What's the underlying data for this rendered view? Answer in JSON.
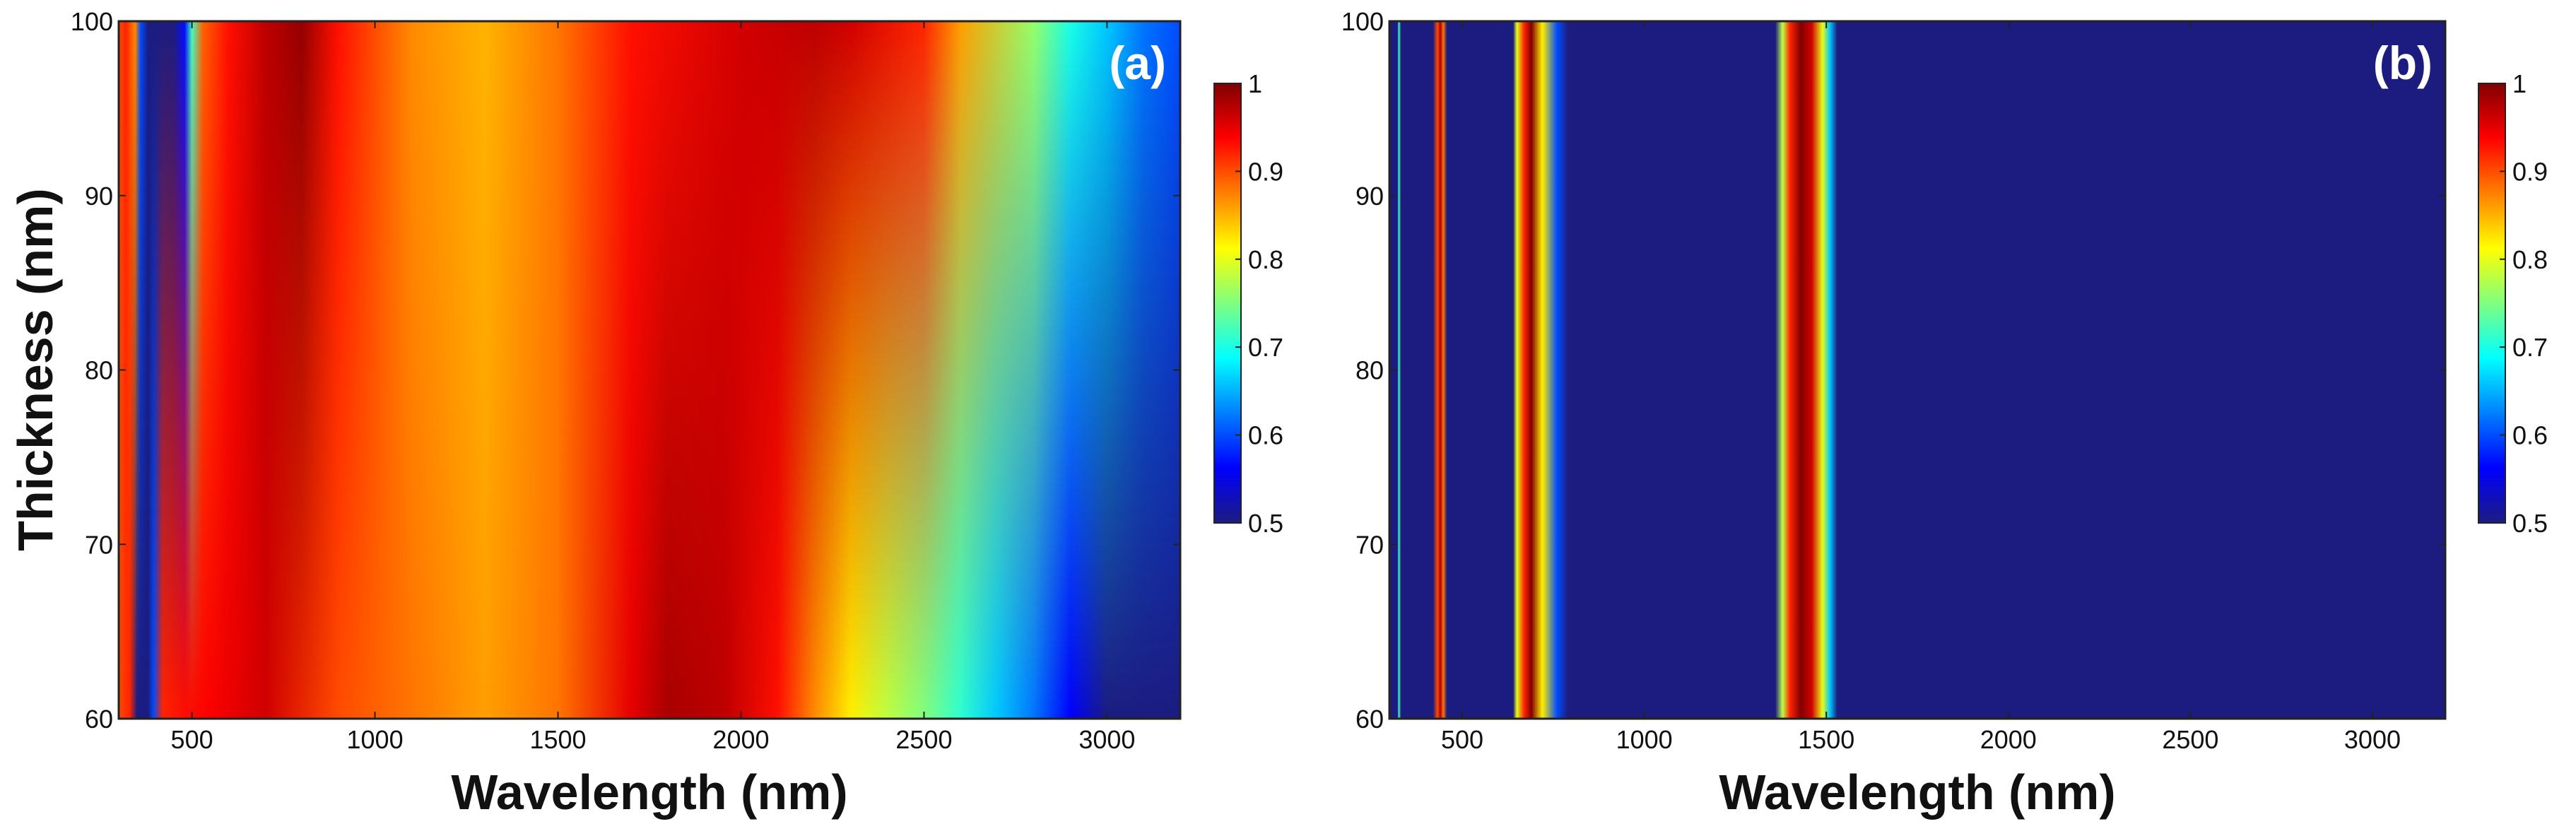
{
  "chart_data": [
    {
      "type": "heatmap",
      "panel_label": "(a)",
      "xlabel": "Wavelength (nm)",
      "ylabel": "Thickness (nm)",
      "xlim": [
        300,
        3200
      ],
      "ylim": [
        60,
        100
      ],
      "xticks": [
        500,
        1000,
        1500,
        2000,
        2500,
        3000
      ],
      "yticks": [
        60,
        70,
        80,
        90,
        100
      ],
      "colorbar": {
        "range": [
          0.5,
          1
        ],
        "ticks": [
          0.5,
          0.6,
          0.7,
          0.8,
          0.9,
          1
        ],
        "tick_labels": [
          "0.5",
          "0.6",
          "0.7",
          "0.8",
          "0.9",
          "1"
        ],
        "colormap": "jet"
      },
      "profile_at_thickness_60": {
        "wavelength": [
          300,
          330,
          350,
          380,
          395,
          420,
          480,
          550,
          700,
          900,
          1100,
          1300,
          1500,
          1700,
          1800,
          1950,
          2100,
          2200,
          2300,
          2400,
          2500,
          2600,
          2700,
          2800,
          2900,
          3000,
          3200
        ],
        "value": [
          0.9,
          0.92,
          0.5,
          0.5,
          0.6,
          0.92,
          0.93,
          0.94,
          0.96,
          0.9,
          0.88,
          0.86,
          0.88,
          0.95,
          0.98,
          0.97,
          0.93,
          0.87,
          0.82,
          0.78,
          0.75,
          0.71,
          0.66,
          0.62,
          0.56,
          0.5,
          0.5
        ]
      },
      "profile_at_thickness_100": {
        "wavelength": [
          300,
          320,
          345,
          360,
          380,
          450,
          480,
          500,
          530,
          600,
          700,
          800,
          900,
          1100,
          1300,
          1500,
          1700,
          2000,
          2200,
          2300,
          2500,
          2600,
          2800,
          2900,
          3000,
          3100,
          3200
        ],
        "value": [
          0.9,
          0.92,
          0.87,
          0.6,
          0.5,
          0.5,
          0.57,
          0.72,
          0.89,
          0.93,
          0.97,
          0.99,
          0.93,
          0.87,
          0.85,
          0.88,
          0.93,
          0.96,
          0.97,
          0.96,
          0.92,
          0.86,
          0.76,
          0.7,
          0.66,
          0.62,
          0.6
        ]
      }
    },
    {
      "type": "heatmap",
      "panel_label": "(b)",
      "xlabel": "Wavelength (nm)",
      "ylabel": "",
      "xlim": [
        300,
        3200
      ],
      "ylim": [
        60,
        100
      ],
      "xticks": [
        500,
        1000,
        1500,
        2000,
        2500,
        3000
      ],
      "yticks": [
        60,
        70,
        80,
        90,
        100
      ],
      "colorbar": {
        "range": [
          0.5,
          1
        ],
        "ticks": [
          0.5,
          0.6,
          0.7,
          0.8,
          0.9,
          1
        ],
        "tick_labels": [
          "0.5",
          "0.6",
          "0.7",
          "0.8",
          "0.9",
          "1"
        ],
        "colormap": "jet"
      },
      "profile_all_thickness": {
        "wavelength": [
          300,
          322,
          326,
          332,
          420,
          432,
          440,
          448,
          458,
          640,
          650,
          670,
          690,
          720,
          760,
          790,
          1360,
          1380,
          1400,
          1430,
          1460,
          1490,
          1510,
          1530,
          3200
        ],
        "value": [
          0.5,
          0.5,
          0.72,
          0.5,
          0.5,
          0.9,
          0.98,
          0.88,
          0.5,
          0.5,
          0.8,
          0.92,
          1.0,
          0.82,
          0.6,
          0.5,
          0.5,
          0.78,
          0.92,
          1.0,
          0.96,
          0.8,
          0.66,
          0.5,
          0.5
        ]
      }
    }
  ]
}
